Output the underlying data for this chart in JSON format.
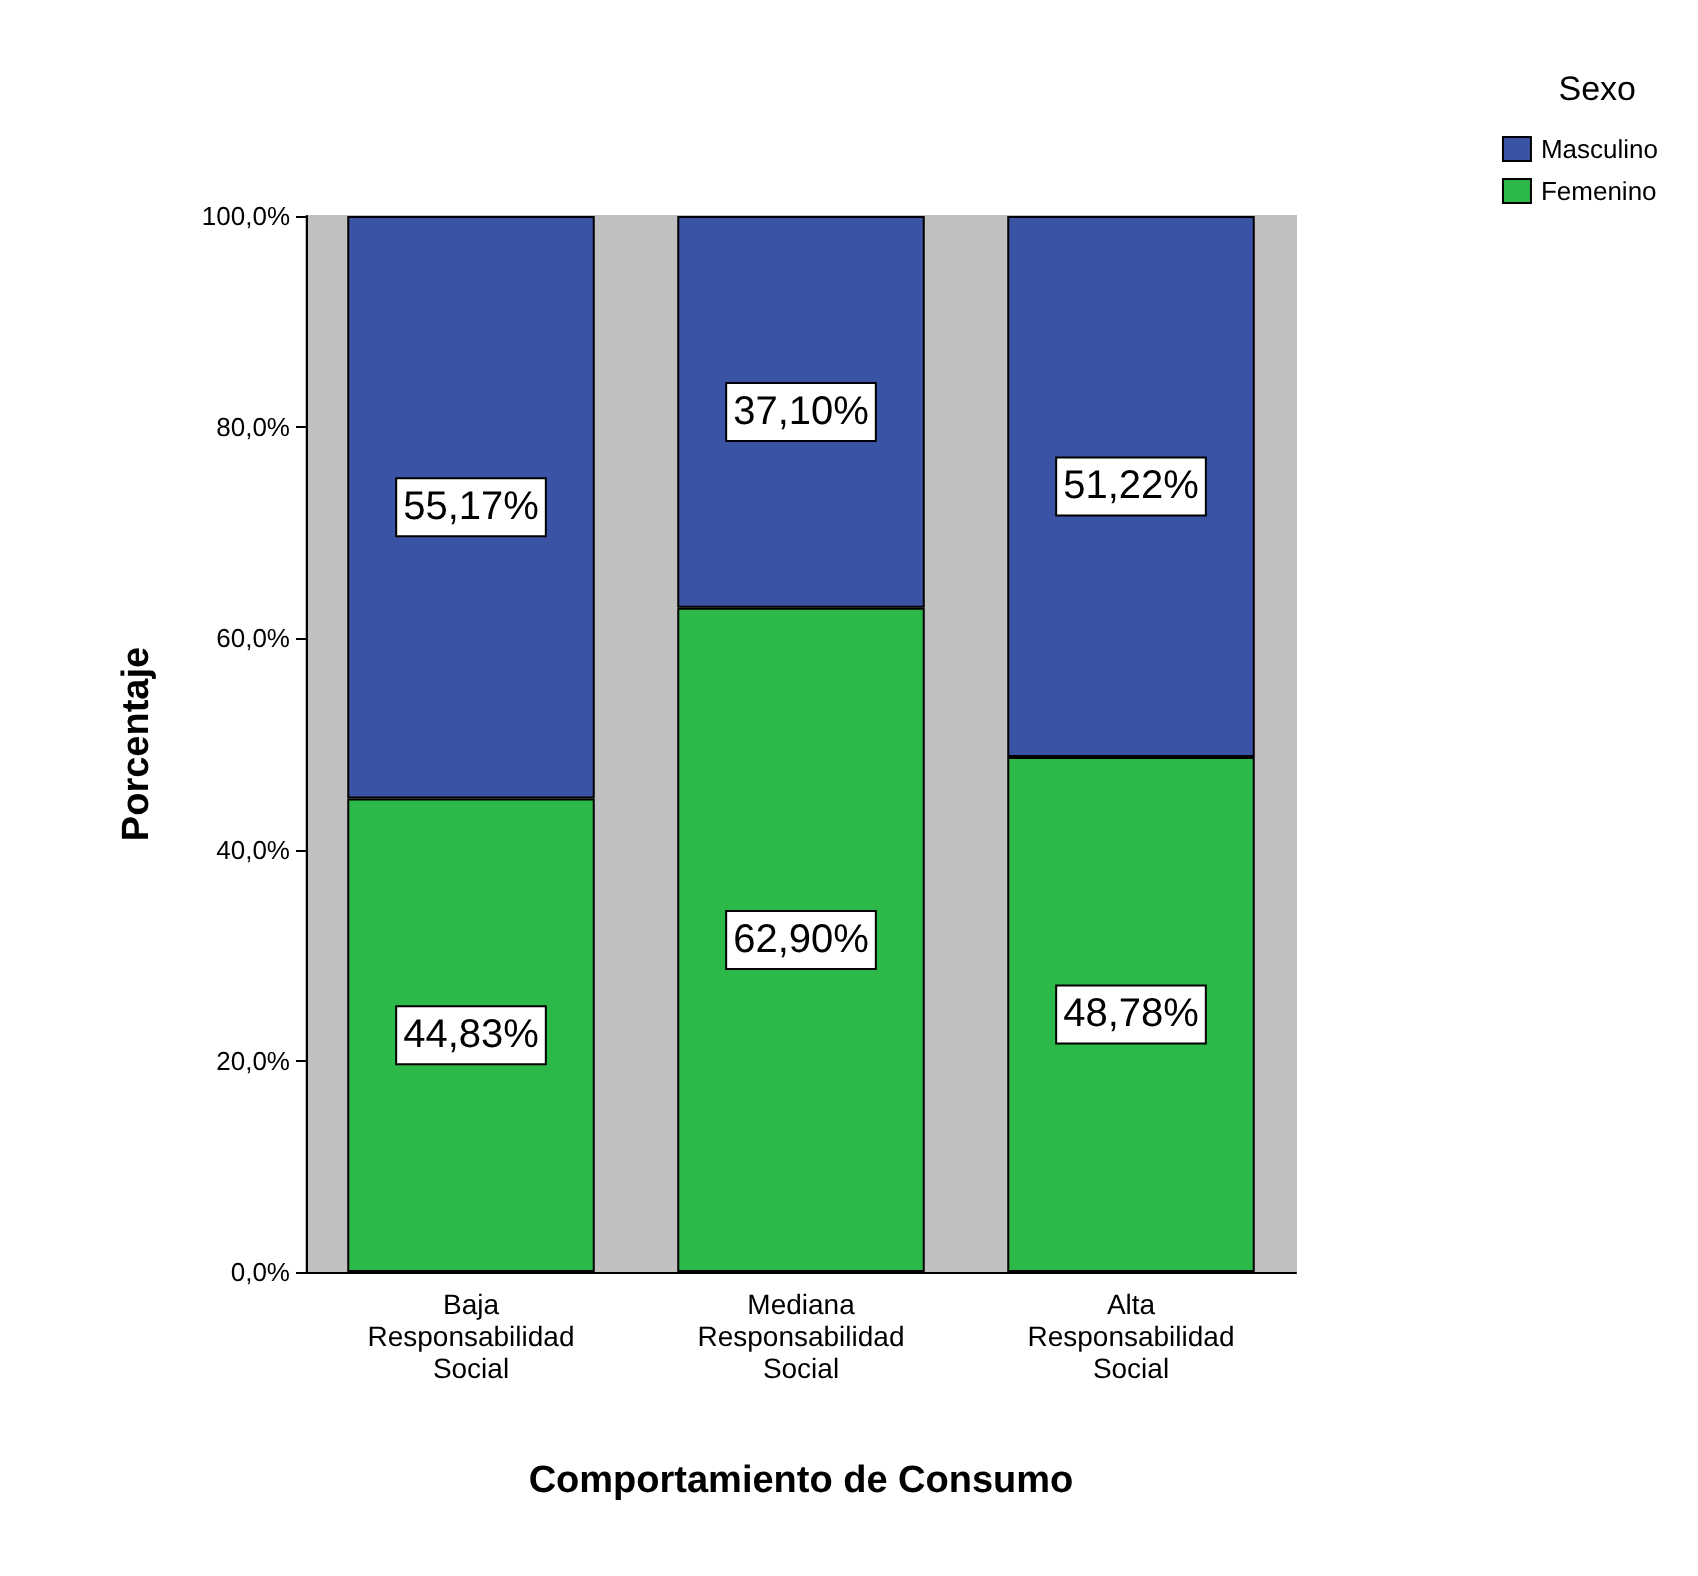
{
  "chart_data": {
    "type": "bar",
    "stacked": true,
    "xlabel": "Comportamiento de Consumo",
    "ylabel": "Porcentaje",
    "legend_title": "Sexo",
    "legend": "top right",
    "grid": false,
    "categories": [
      "Baja\nResponsabilidad\nSocial",
      "Mediana\nResponsabilidad\nSocial",
      "Alta\nResponsabilidad\nSocial"
    ],
    "series": [
      {
        "name": "Femenino",
        "color": "#2db84a",
        "values": [
          44.83,
          62.9,
          48.78
        ],
        "value_labels": [
          "44,83%",
          "62,90%",
          "48,78%"
        ]
      },
      {
        "name": "Masculino",
        "color": "#3a53a4",
        "values": [
          55.17,
          37.1,
          51.22
        ],
        "value_labels": [
          "55,17%",
          "37,10%",
          "51,22%"
        ]
      }
    ],
    "ylim": [
      0,
      100
    ],
    "yticks": [
      {
        "value": 0,
        "label": "0,0%"
      },
      {
        "value": 20,
        "label": "20,0%"
      },
      {
        "value": 40,
        "label": "40,0%"
      },
      {
        "value": 60,
        "label": "60,0%"
      },
      {
        "value": 80,
        "label": "80,0%"
      },
      {
        "value": 100,
        "label": "100,0%"
      }
    ]
  }
}
